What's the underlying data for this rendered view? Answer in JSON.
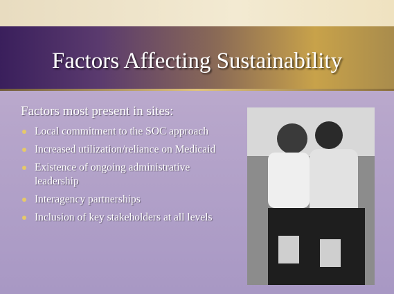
{
  "slide": {
    "title": "Factors Affecting Sustainability",
    "subtitle": "Factors most present in sites:",
    "bullets": [
      "Local commitment to the SOC approach",
      "Increased utilization/reliance on Medicaid",
      "Existence of ongoing administrative leadership",
      "Interagency partnerships",
      "Inclusion of key stakeholders at all levels"
    ]
  }
}
